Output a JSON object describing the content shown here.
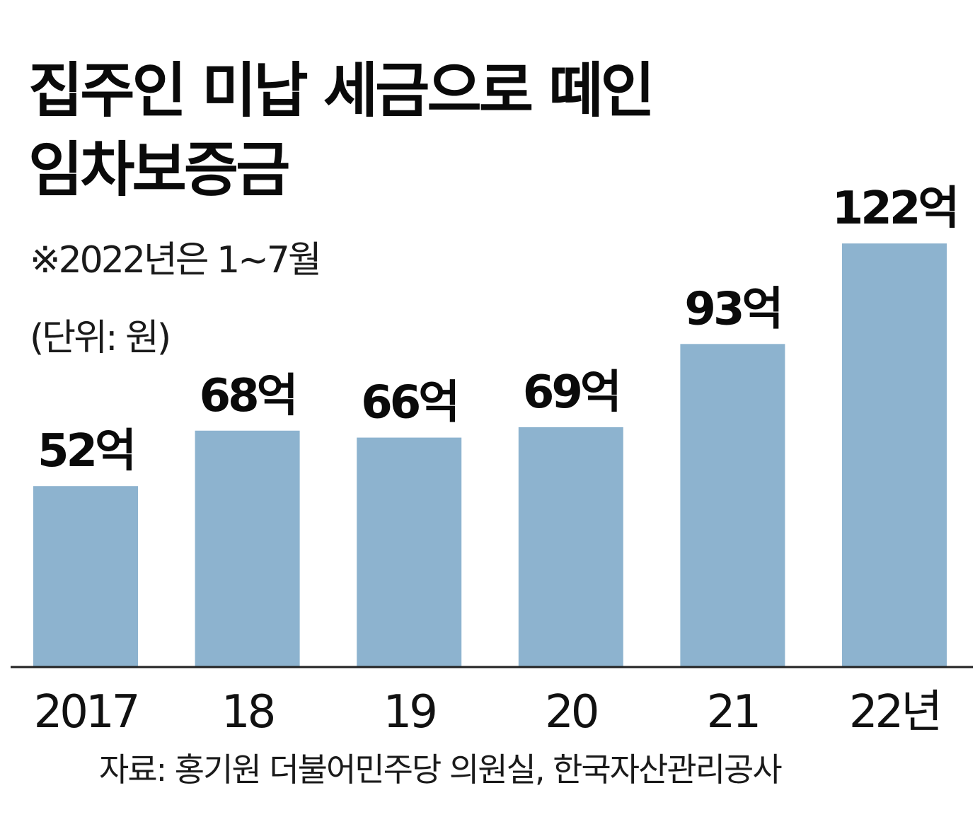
{
  "chart_data": {
    "type": "bar",
    "title": "집주인 미납 세금으로 떼인 임차보증금",
    "title_lines": [
      "집주인 미납 세금으로 떼인",
      "임차보증금"
    ],
    "note": "※2022년은 1~7월",
    "unit": "(단위:  원)",
    "categories": [
      "2017",
      "18",
      "19",
      "20",
      "21",
      "22년"
    ],
    "values": [
      52,
      68,
      66,
      69,
      93,
      122
    ],
    "data_labels": [
      "52억",
      "68억",
      "66억",
      "69억",
      "93억",
      "122억"
    ],
    "ylim": [
      0,
      125
    ],
    "grid": false,
    "legend": "none",
    "bar_color": "#8db3cf",
    "source": "자료: 홍기원 더불어민주당 의원실, 한국자산관리공사"
  }
}
